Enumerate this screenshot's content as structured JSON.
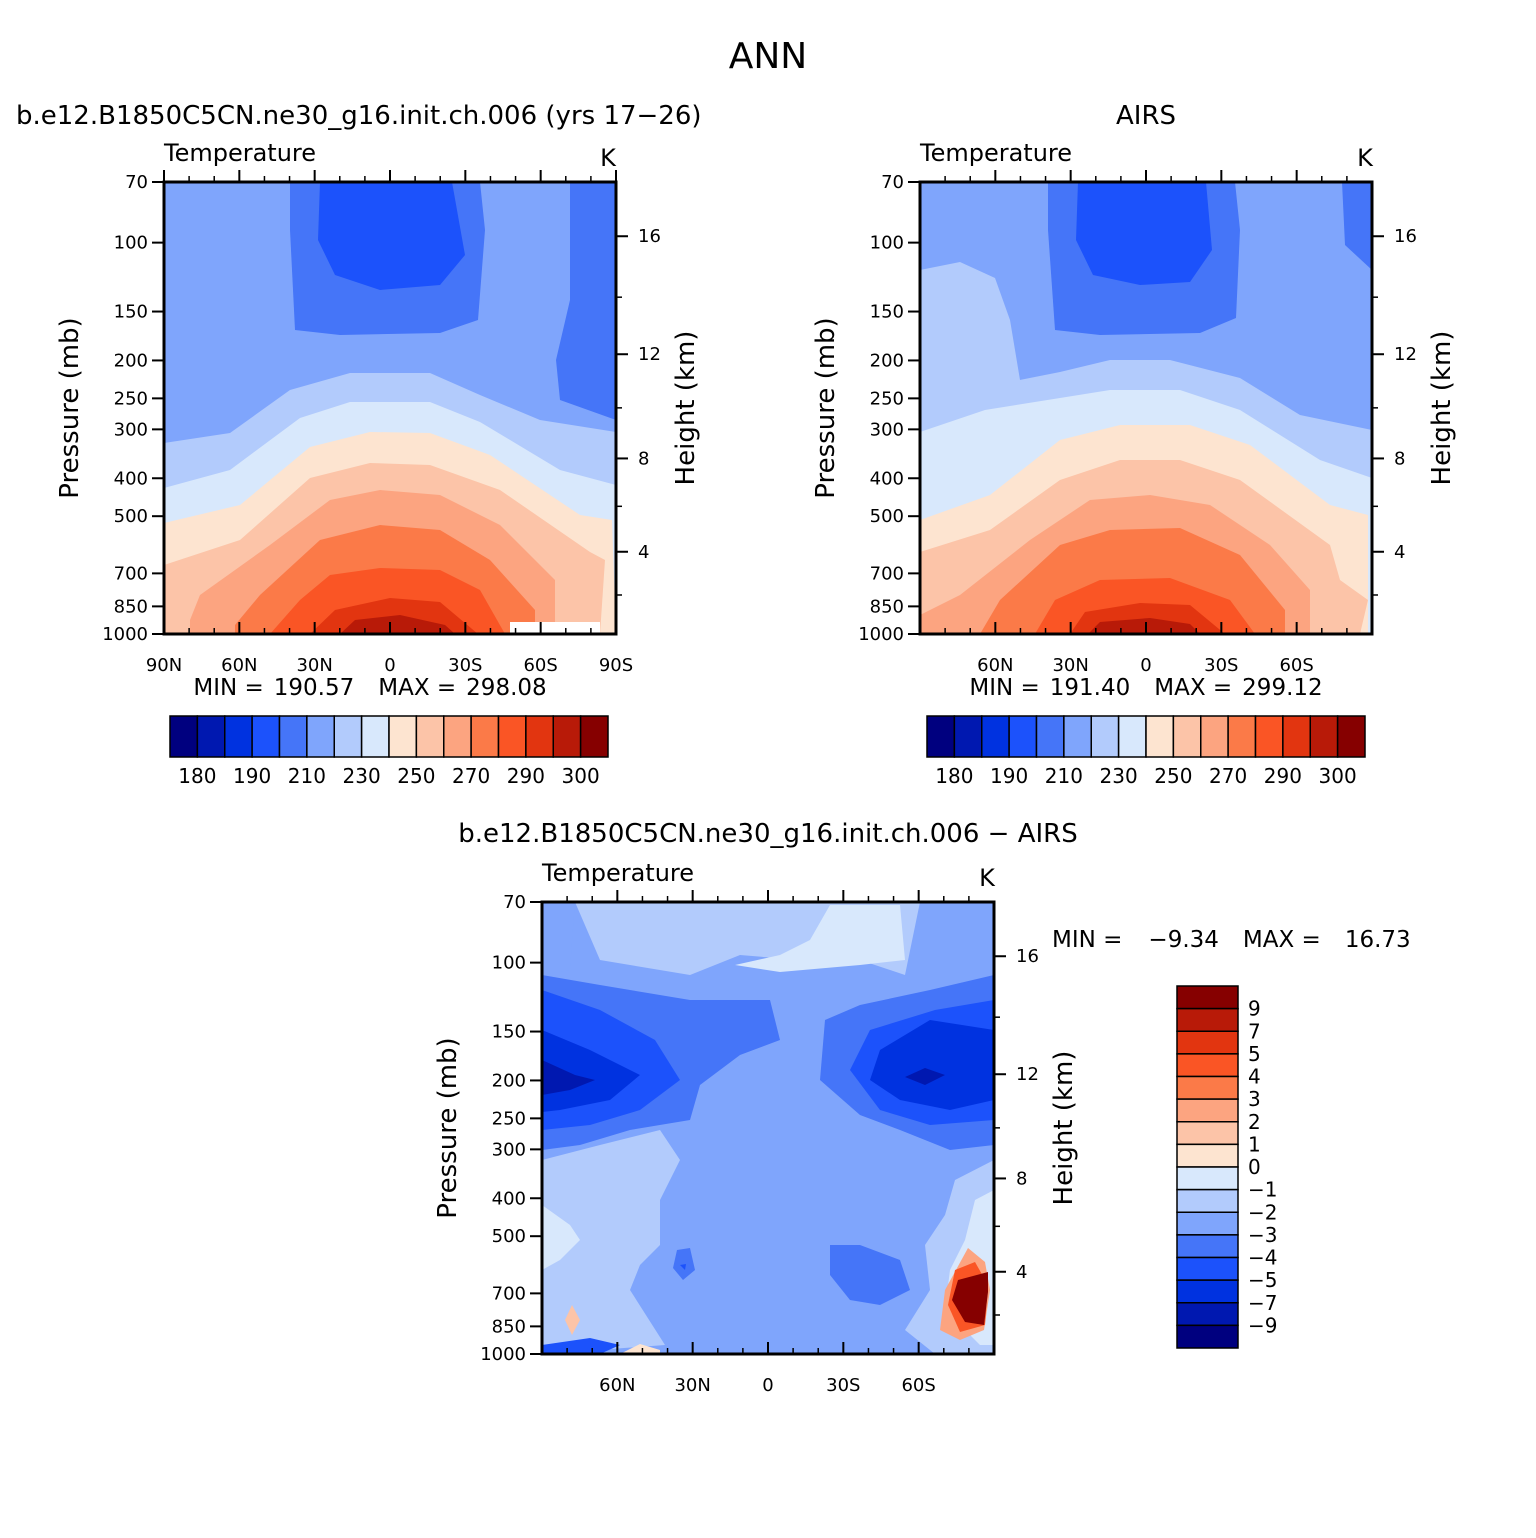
{
  "title": "ANN",
  "colors": {
    "temp_scale": [
      "#00007f",
      "#0018b0",
      "#0032e0",
      "#1c52fb",
      "#4575f8",
      "#7fa5fc",
      "#b2cbfc",
      "#d8e8fc",
      "#fde4d0",
      "#fcc4a8",
      "#fca480",
      "#fb7a48",
      "#fa5525",
      "#e23510",
      "#b81a08",
      "#860000"
    ],
    "diff_scale": [
      "#00007f",
      "#0018b0",
      "#0032e0",
      "#1c52fb",
      "#4575f8",
      "#7fa5fc",
      "#b2cbfc",
      "#d8e8fc",
      "#fde4d0",
      "#fcc4a8",
      "#fca480",
      "#fb7a48",
      "#fa5525",
      "#e23510",
      "#b81a08",
      "#860000"
    ]
  },
  "chart_data": [
    {
      "type": "contour",
      "panel": "model",
      "title": "b.e12.B1850C5CN.ne30_g16.init.ch.006 (yrs 17-26)",
      "title_display": "b.e12.B1850C5CN.ne30_g16.init.ch.006 (yrs 17−26)",
      "variable": "Temperature",
      "units": "K",
      "xlabel": "",
      "ylabel": "Pressure (mb)",
      "y2label": "Height (km)",
      "x_ticks": [
        "90N",
        "60N",
        "30N",
        "0",
        "30S",
        "60S",
        "90S"
      ],
      "x_values": [
        90,
        60,
        30,
        0,
        -30,
        -60,
        -90
      ],
      "y_ticks": [
        "70",
        "100",
        "150",
        "200",
        "250",
        "300",
        "400",
        "500",
        "700",
        "850",
        "1000"
      ],
      "y_values": [
        70,
        100,
        150,
        200,
        250,
        300,
        400,
        500,
        700,
        850,
        1000
      ],
      "height_ticks": [
        "16",
        "12",
        "8",
        "4"
      ],
      "height_values": [
        16,
        12,
        8,
        4
      ],
      "stats": {
        "min_label": "MIN =",
        "min": "190.57",
        "max_label": "MAX =",
        "max": "298.08"
      },
      "colorbar_labels": [
        "180",
        "190",
        "210",
        "230",
        "250",
        "270",
        "290",
        "300"
      ]
    },
    {
      "type": "contour",
      "panel": "obs",
      "title": "AIRS",
      "variable": "Temperature",
      "units": "K",
      "ylabel": "Pressure (mb)",
      "y2label": "Height (km)",
      "x_ticks": [
        "60N",
        "30N",
        "0",
        "30S",
        "60S"
      ],
      "x_values": [
        60,
        30,
        0,
        -30,
        -60
      ],
      "y_ticks": [
        "70",
        "100",
        "150",
        "200",
        "250",
        "300",
        "400",
        "500",
        "700",
        "850",
        "1000"
      ],
      "y_values": [
        70,
        100,
        150,
        200,
        250,
        300,
        400,
        500,
        700,
        850,
        1000
      ],
      "height_ticks": [
        "16",
        "12",
        "8",
        "4"
      ],
      "height_values": [
        16,
        12,
        8,
        4
      ],
      "stats": {
        "min_label": "MIN =",
        "min": "191.40",
        "max_label": "MAX =",
        "max": "299.12"
      },
      "colorbar_labels": [
        "180",
        "190",
        "210",
        "230",
        "250",
        "270",
        "290",
        "300"
      ]
    },
    {
      "type": "contour",
      "panel": "difference",
      "title": "b.e12.B1850C5CN.ne30_g16.init.ch.006 - AIRS",
      "title_display": "b.e12.B1850C5CN.ne30_g16.init.ch.006  −  AIRS",
      "variable": "Temperature",
      "units": "K",
      "ylabel": "Pressure (mb)",
      "y2label": "Height (km)",
      "x_ticks": [
        "60N",
        "30N",
        "0",
        "30S",
        "60S"
      ],
      "x_values": [
        60,
        30,
        0,
        -30,
        -60
      ],
      "y_ticks": [
        "70",
        "100",
        "150",
        "200",
        "250",
        "300",
        "400",
        "500",
        "700",
        "850",
        "1000"
      ],
      "y_values": [
        70,
        100,
        150,
        200,
        250,
        300,
        400,
        500,
        700,
        850,
        1000
      ],
      "height_ticks": [
        "16",
        "12",
        "8",
        "4"
      ],
      "height_values": [
        16,
        12,
        8,
        4
      ],
      "stats": {
        "min_label": "MIN =",
        "min": "−9.34",
        "max_label": "MAX =",
        "max": "16.73"
      },
      "colorbar_labels": [
        "9",
        "7",
        "5",
        "4",
        "3",
        "2",
        "1",
        "0",
        "−1",
        "−2",
        "−3",
        "−4",
        "−5",
        "−7",
        "−9"
      ]
    }
  ]
}
